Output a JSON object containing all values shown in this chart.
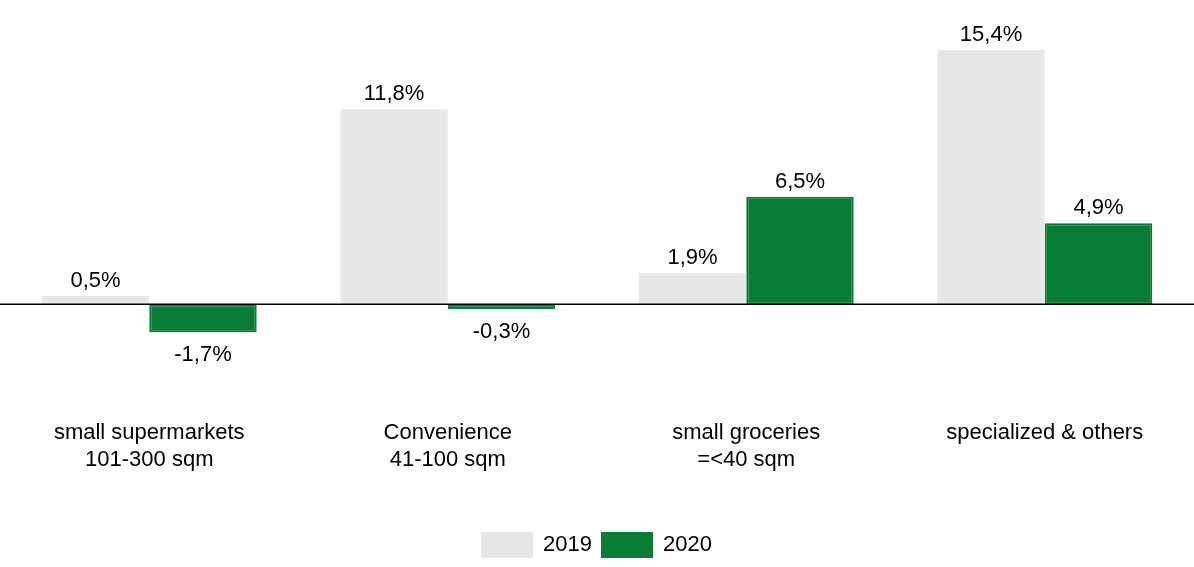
{
  "chart_data": {
    "type": "bar",
    "categories": [
      "small supermarkets\n101-300 sqm",
      "Convenience\n41-100 sqm",
      "small groceries\n=<40 sqm",
      "specialized & others"
    ],
    "series": [
      {
        "name": "2019",
        "color": "#e6e6e6",
        "values": [
          0.5,
          11.8,
          1.9,
          15.4
        ],
        "value_labels": [
          "0,5%",
          "11,8%",
          "1,9%",
          "15,4%"
        ]
      },
      {
        "name": "2020",
        "color": "#077d36",
        "values": [
          -1.7,
          -0.3,
          6.5,
          4.9
        ],
        "value_labels": [
          "-1,7%",
          "-0,3%",
          "6,5%",
          "4,9%"
        ]
      }
    ],
    "legend": "bottom",
    "grid": false
  }
}
